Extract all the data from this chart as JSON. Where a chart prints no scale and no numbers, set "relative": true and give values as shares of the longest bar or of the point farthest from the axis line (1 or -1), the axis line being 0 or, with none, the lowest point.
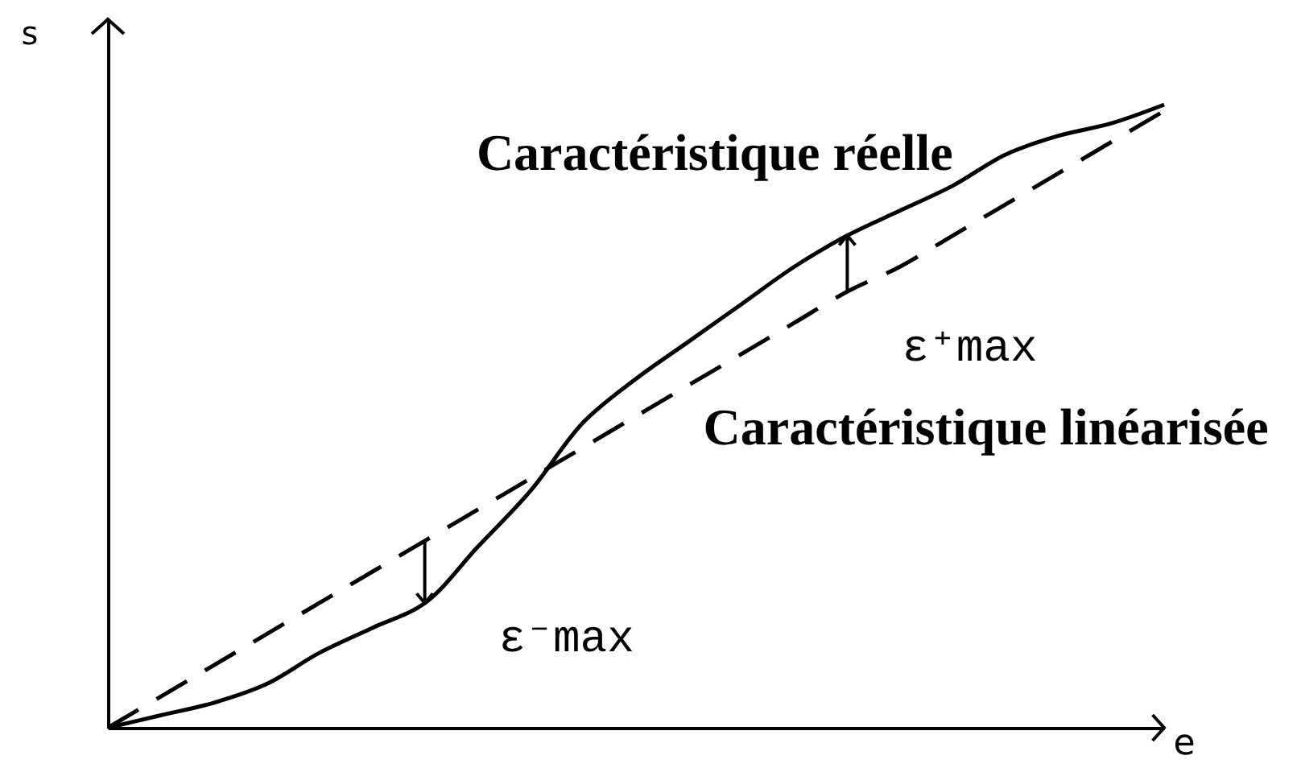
{
  "chart_data": {
    "type": "line",
    "xlabel": "e",
    "ylabel": "s",
    "relative": true,
    "line_style": "solid",
    "categories": [
      null,
      null,
      null,
      null,
      null,
      null,
      null,
      null,
      null,
      null,
      null,
      null,
      null,
      null,
      null,
      null,
      null,
      null,
      null,
      null,
      null
    ],
    "series": [
      {
        "name": "Caractéristique réelle",
        "color": "#000000",
        "values": [
          0,
          0.02,
          0.04,
          0.07,
          0.12,
          0.16,
          0.2,
          0.29,
          0.38,
          0.49,
          0.56,
          0.62,
          0.68,
          0.74,
          0.79,
          0.83,
          0.87,
          0.92,
          0.95,
          0.97,
          1
        ]
      },
      {
        "name": "Caractéristique linéarisée",
        "color": "#000000",
        "line_style": "dashed",
        "values": [
          0,
          0.05,
          0.1,
          0.15,
          0.2,
          0.25,
          0.3,
          0.35,
          0.4,
          0.45,
          0.5,
          0.55,
          0.6,
          0.65,
          0.7,
          0.74,
          0.79,
          0.84,
          0.89,
          0.94,
          0.99
        ]
      }
    ],
    "annotations": [
      "ε⁺max",
      "ε⁻max"
    ]
  }
}
